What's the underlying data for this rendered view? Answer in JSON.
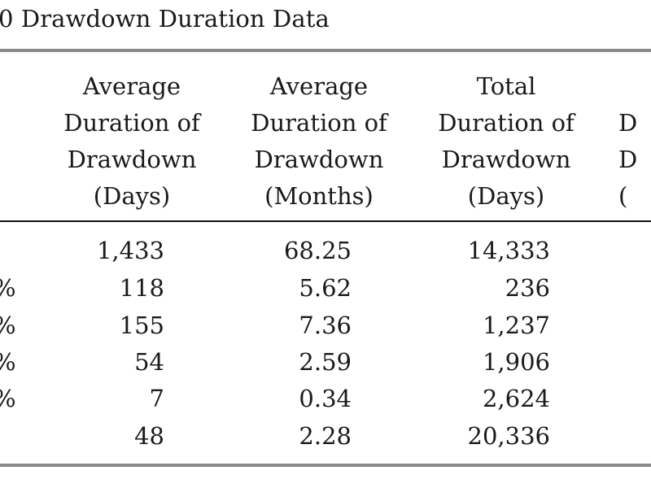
{
  "title": "0 Drawdown Duration Data",
  "headers": [
    [
      "Average",
      "Duration of",
      "Drawdown",
      "(Days)"
    ],
    [
      "Average",
      "Duration of",
      "Drawdown",
      "(Months)"
    ],
    [
      "Total",
      "Duration of",
      "Drawdown",
      "(Days)"
    ],
    [
      "",
      "D",
      "D",
      "("
    ]
  ],
  "rows": [
    {
      "label": "",
      "avg_days": "1,433",
      "avg_months": "68.25",
      "total_days": "14,333"
    },
    {
      "label": "%",
      "avg_days": "118",
      "avg_months": "5.62",
      "total_days": "236"
    },
    {
      "label": "%",
      "avg_days": "155",
      "avg_months": "7.36",
      "total_days": "1,237"
    },
    {
      "label": "%",
      "avg_days": "54",
      "avg_months": "2.59",
      "total_days": "1,906"
    },
    {
      "label": "%",
      "avg_days": "7",
      "avg_months": "0.34",
      "total_days": "2,624"
    },
    {
      "label": "",
      "avg_days": "48",
      "avg_months": "2.28",
      "total_days": "20,336"
    }
  ]
}
